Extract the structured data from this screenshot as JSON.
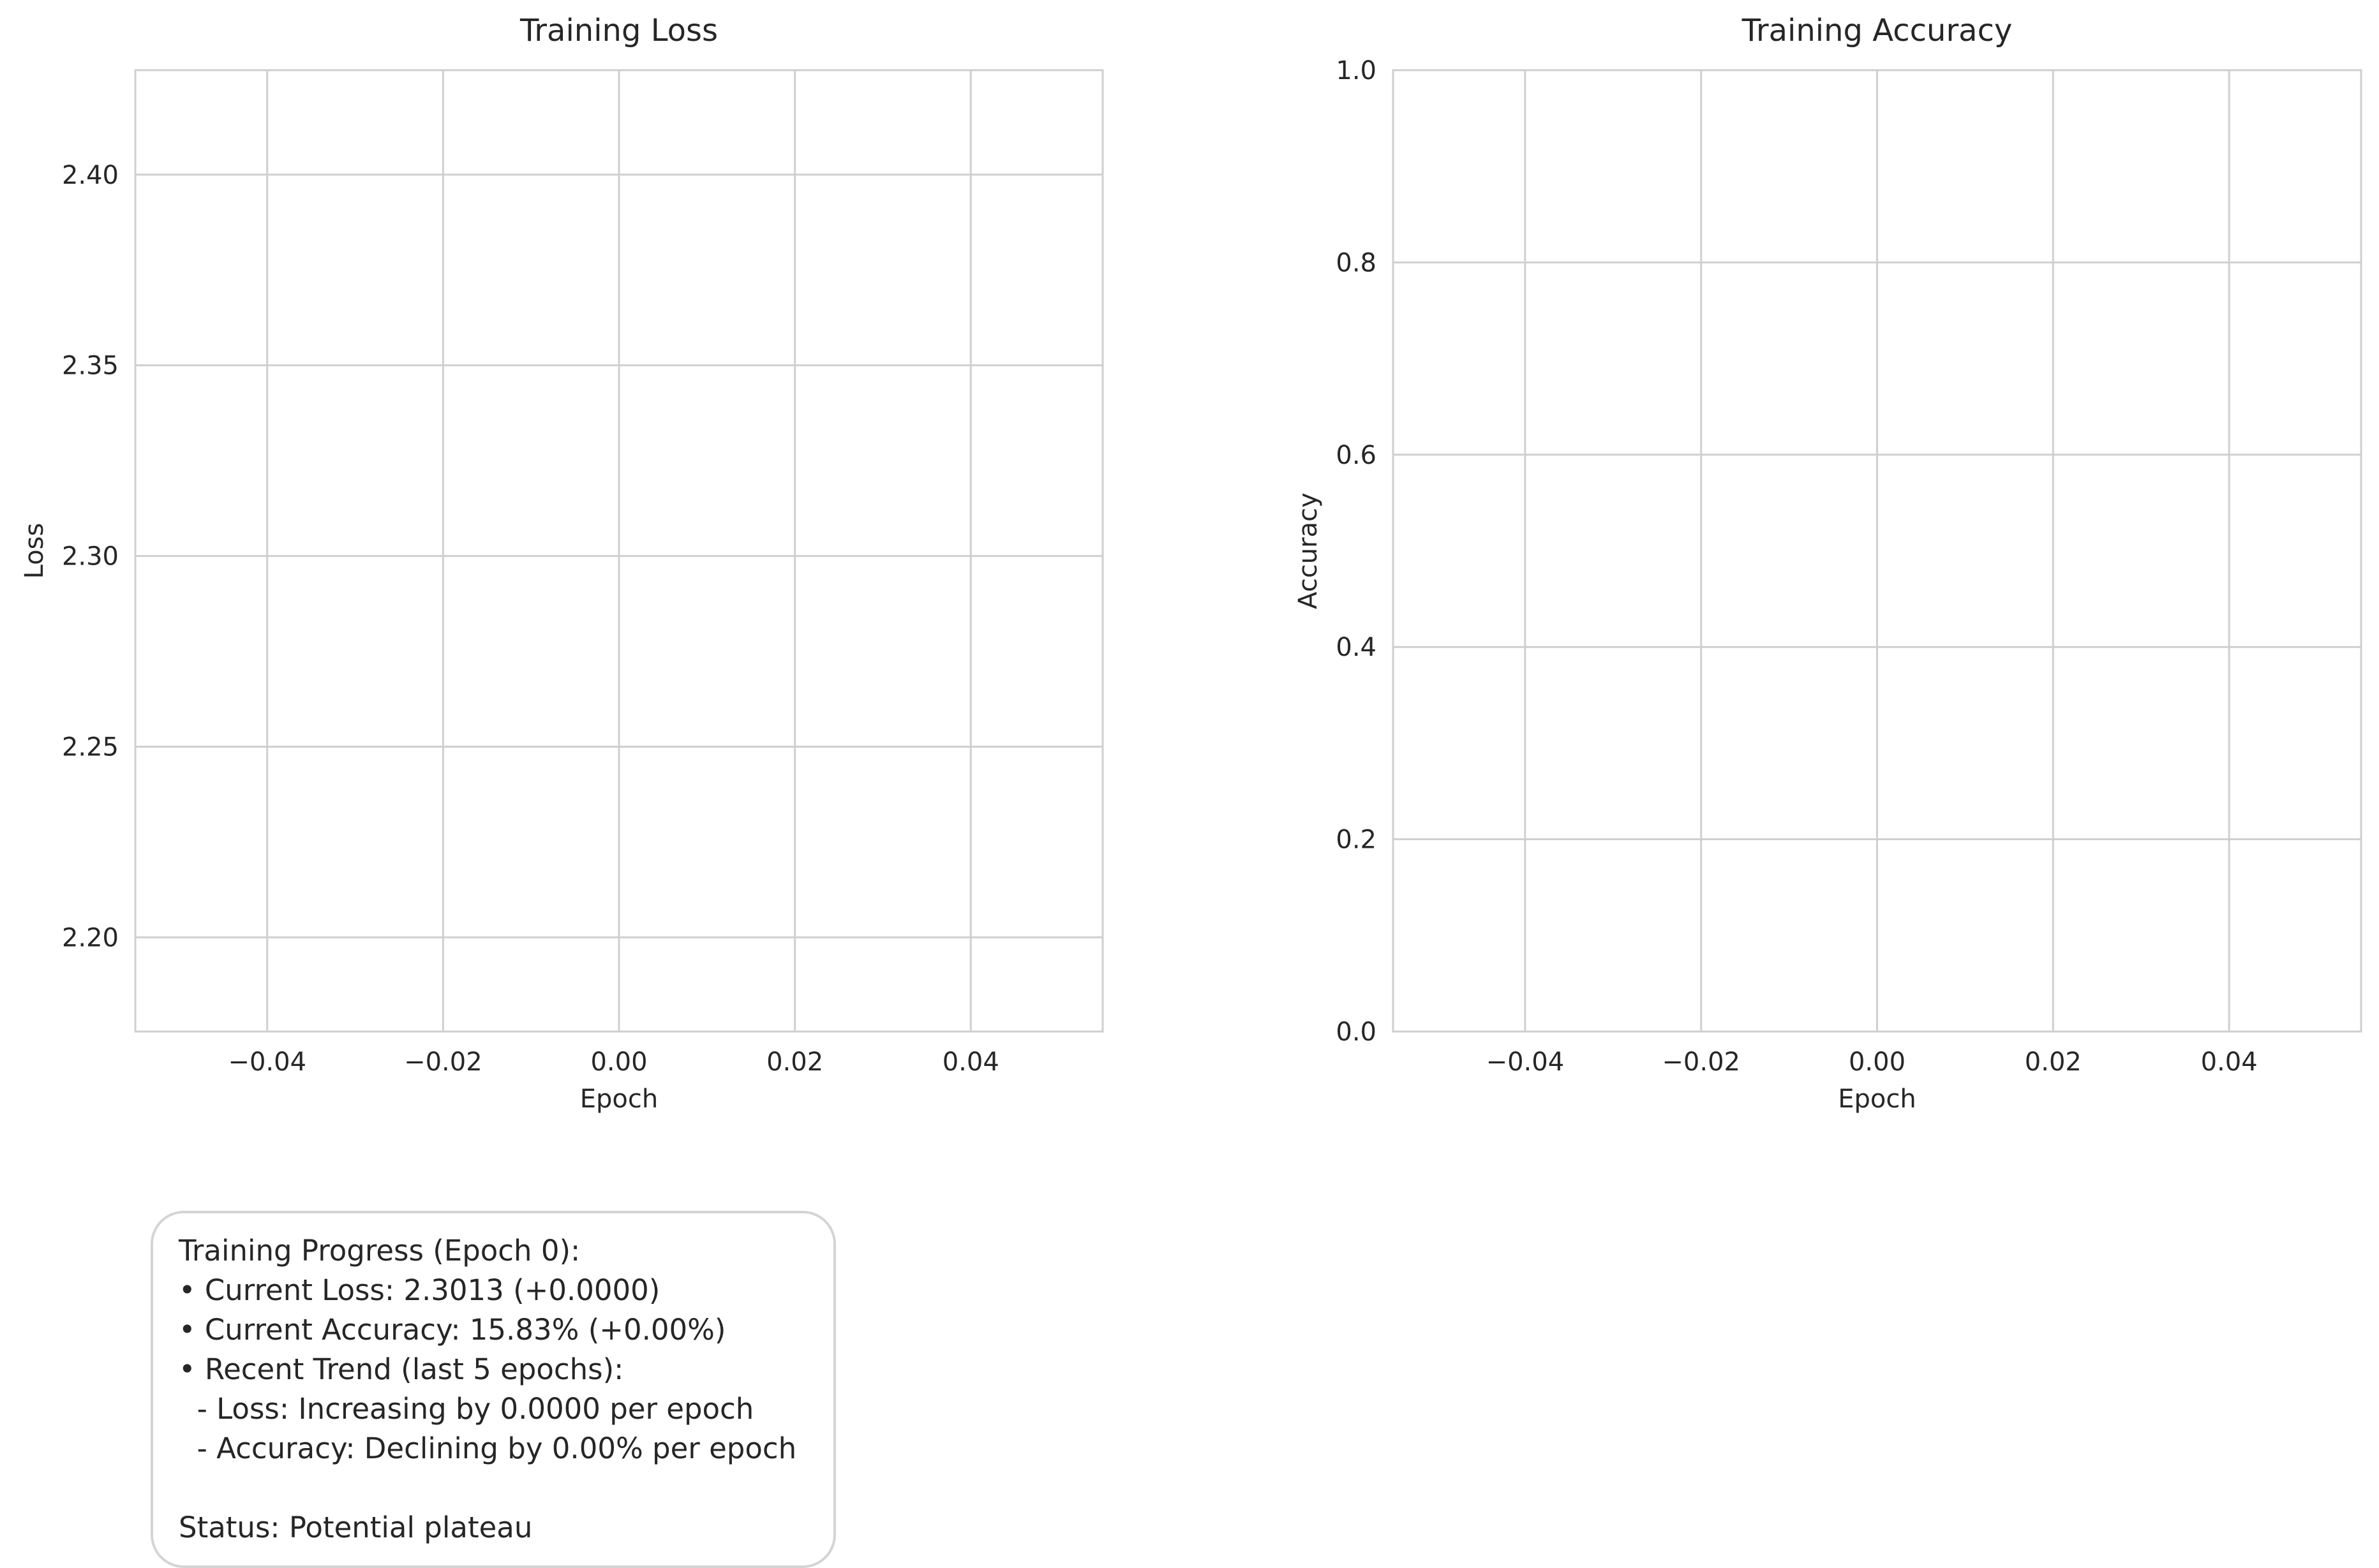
{
  "chart_data": [
    {
      "type": "line",
      "title": "Training Loss",
      "xlabel": "Epoch",
      "ylabel": "Loss",
      "xlim": [
        -0.055,
        0.055
      ],
      "ylim": [
        2.1753,
        2.4274
      ],
      "xticks": [
        -0.04,
        -0.02,
        0.0,
        0.02,
        0.04
      ],
      "xtick_labels": [
        "−0.04",
        "−0.02",
        "0.00",
        "0.02",
        "0.04"
      ],
      "yticks": [
        2.2,
        2.25,
        2.3,
        2.35,
        2.4
      ],
      "ytick_labels": [
        "2.20",
        "2.25",
        "2.30",
        "2.35",
        "2.40"
      ],
      "grid": true,
      "series": [
        {
          "x": [],
          "y": []
        }
      ]
    },
    {
      "type": "line",
      "title": "Training Accuracy",
      "xlabel": "Epoch",
      "ylabel": "Accuracy",
      "xlim": [
        -0.055,
        0.055
      ],
      "ylim": [
        0.0,
        1.0
      ],
      "xticks": [
        -0.04,
        -0.02,
        0.0,
        0.02,
        0.04
      ],
      "xtick_labels": [
        "−0.04",
        "−0.02",
        "0.00",
        "0.02",
        "0.04"
      ],
      "yticks": [
        0.0,
        0.2,
        0.4,
        0.6,
        0.8,
        1.0
      ],
      "ytick_labels": [
        "0.0",
        "0.2",
        "0.4",
        "0.6",
        "0.8",
        "1.0"
      ],
      "grid": true,
      "series": [
        {
          "x": [],
          "y": []
        }
      ]
    }
  ],
  "status_box": {
    "lines": [
      "Training Progress (Epoch 0):",
      "• Current Loss: 2.3013 (+0.0000)",
      "• Current Accuracy: 15.83% (+0.00%)",
      "• Recent Trend (last 5 epochs):",
      "  - Loss: Increasing by 0.0000 per epoch",
      "  - Accuracy: Declining by 0.00% per epoch",
      "",
      "Status: Potential plateau"
    ]
  },
  "colors": {
    "grid": "#cfcfd3",
    "spine": "#cfcfd3",
    "text": "#262626",
    "box_border": "#d4d4d4"
  }
}
